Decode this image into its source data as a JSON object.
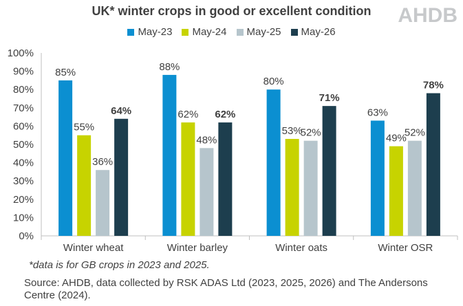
{
  "branding": {
    "logo_text": "AHDB"
  },
  "chart_data": {
    "type": "bar",
    "title": "UK* winter crops in good or excellent condition",
    "categories": [
      "Winter wheat",
      "Winter barley",
      "Winter oats",
      "Winter OSR"
    ],
    "series": [
      {
        "name": "May-23",
        "color": "#0b8fd1",
        "values": [
          85,
          88,
          80,
          63
        ],
        "bold_labels": false
      },
      {
        "name": "May-24",
        "color": "#c7d300",
        "values": [
          55,
          62,
          53,
          49
        ],
        "bold_labels": false
      },
      {
        "name": "May-25",
        "color": "#b6c5cc",
        "values": [
          36,
          48,
          52,
          52
        ],
        "bold_labels": false
      },
      {
        "name": "May-26",
        "color": "#1d3e4e",
        "values": [
          64,
          62,
          71,
          78
        ],
        "bold_labels": true
      }
    ],
    "value_suffix": "%",
    "ylim": [
      0,
      100
    ],
    "yticks": [
      0,
      10,
      20,
      30,
      40,
      50,
      60,
      70,
      80,
      90,
      100
    ],
    "ytick_labels": [
      "0%",
      "10%",
      "20%",
      "30%",
      "40%",
      "50%",
      "60%",
      "70%",
      "80%",
      "90%",
      "100%"
    ],
    "xlabel": "",
    "ylabel": "",
    "grid": false,
    "legend_position": "top"
  },
  "notes": {
    "footnote": "*data is for GB crops in 2023 and 2025.",
    "source_line1": "Source: AHDB, data collected by RSK ADAS Ltd (2023, 2025, 2026) and The Andersons",
    "source_line2": "Centre (2024)."
  }
}
